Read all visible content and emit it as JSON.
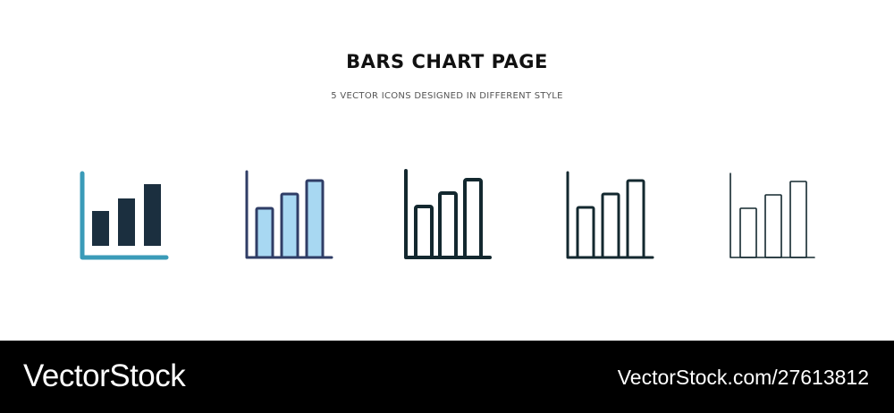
{
  "header": {
    "title": "BARS CHART PAGE",
    "subtitle": "5 VECTOR ICONS DESIGNED IN DIFFERENT STYLE"
  },
  "icons": [
    {
      "name": "bar-chart-filled-icon",
      "style": "filled two-tone",
      "colors": {
        "bars": "#1b2f3f",
        "axis": "#3a9bb8"
      }
    },
    {
      "name": "bar-chart-colored-outline-icon",
      "style": "filled outline",
      "colors": {
        "stroke": "#2f3d66",
        "fill": "#a8d8f2"
      }
    },
    {
      "name": "bar-chart-bold-outline-icon",
      "style": "black outline thick",
      "colors": {
        "stroke": "#13282f"
      }
    },
    {
      "name": "bar-chart-outline-icon",
      "style": "outline",
      "colors": {
        "stroke": "#13282f"
      }
    },
    {
      "name": "bar-chart-thin-outline-icon",
      "style": "thin outline",
      "colors": {
        "stroke": "#13282f"
      }
    }
  ],
  "footer": {
    "brand": "VectorStock",
    "url": "VectorStock.com/27613812"
  }
}
